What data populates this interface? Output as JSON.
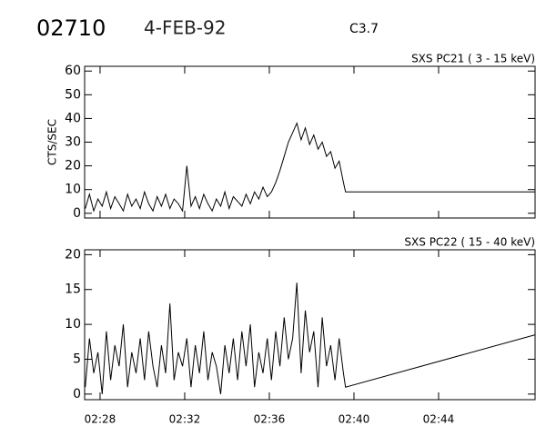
{
  "header": {
    "id": "02710",
    "date": "4-FEB-92",
    "class": "C3.7"
  },
  "chart_data": [
    {
      "type": "line",
      "title": "SXS PC21  ( 3 - 15 keV)",
      "y_label": "CTS/SEC",
      "color": "#000000",
      "xlim": [
        27.27,
        48.56
      ],
      "xticks": [
        28,
        32,
        36,
        40,
        44
      ],
      "ylim": [
        -2,
        62
      ],
      "yticks": [
        0,
        10,
        20,
        30,
        40,
        50,
        60
      ],
      "x": [
        27.3,
        27.5,
        27.7,
        27.9,
        28.1,
        28.3,
        28.5,
        28.7,
        28.9,
        29.1,
        29.3,
        29.5,
        29.7,
        29.9,
        30.1,
        30.3,
        30.5,
        30.7,
        30.9,
        31.1,
        31.3,
        31.5,
        31.7,
        31.9,
        32.1,
        32.3,
        32.5,
        32.7,
        32.9,
        33.1,
        33.3,
        33.5,
        33.7,
        33.9,
        34.1,
        34.3,
        34.5,
        34.7,
        34.9,
        35.1,
        35.3,
        35.5,
        35.7,
        35.9,
        36.1,
        36.3,
        36.5,
        36.7,
        36.9,
        37.1,
        37.3,
        37.5,
        37.7,
        37.9,
        38.1,
        38.3,
        38.5,
        38.7,
        38.9,
        39.1,
        39.3,
        39.5,
        39.6,
        48.56
      ],
      "values": [
        2,
        8,
        1,
        6,
        3,
        9,
        2,
        7,
        4,
        1,
        8,
        3,
        6,
        2,
        9,
        4,
        1,
        7,
        3,
        8,
        2,
        6,
        4,
        1,
        20,
        3,
        7,
        2,
        8,
        4,
        1,
        6,
        3,
        9,
        2,
        7,
        5,
        3,
        8,
        4,
        9,
        6,
        11,
        7,
        9,
        13,
        18,
        24,
        30,
        34,
        38,
        31,
        36,
        29,
        33,
        27,
        30,
        24,
        26,
        19,
        22,
        13,
        9,
        9
      ]
    },
    {
      "type": "line",
      "title": "SXS PC22  ( 15 - 40 keV)",
      "color": "#000000",
      "xlim": [
        27.27,
        48.56
      ],
      "xticks": [
        {
          "value": 28,
          "label": "02:28"
        },
        {
          "value": 32,
          "label": "02:32"
        },
        {
          "value": 36,
          "label": "02:36"
        },
        {
          "value": 40,
          "label": "02:40"
        },
        {
          "value": 44,
          "label": "02:44"
        }
      ],
      "ylim": [
        -0.8,
        20.7
      ],
      "yticks": [
        0,
        5,
        10,
        15,
        20
      ],
      "x": [
        27.3,
        27.5,
        27.7,
        27.9,
        28.1,
        28.3,
        28.5,
        28.7,
        28.9,
        29.1,
        29.3,
        29.5,
        29.7,
        29.9,
        30.1,
        30.3,
        30.5,
        30.7,
        30.9,
        31.1,
        31.3,
        31.5,
        31.7,
        31.9,
        32.1,
        32.3,
        32.5,
        32.7,
        32.9,
        33.1,
        33.3,
        33.5,
        33.7,
        33.9,
        34.1,
        34.3,
        34.5,
        34.7,
        34.9,
        35.1,
        35.3,
        35.5,
        35.7,
        35.9,
        36.1,
        36.3,
        36.5,
        36.7,
        36.9,
        37.1,
        37.3,
        37.5,
        37.7,
        37.9,
        38.1,
        38.3,
        38.5,
        38.7,
        38.9,
        39.1,
        39.3,
        39.5,
        39.6,
        48.56
      ],
      "values": [
        1,
        8,
        3,
        6,
        0,
        9,
        2,
        7,
        4,
        10,
        1,
        6,
        3,
        8,
        2,
        9,
        4,
        1,
        7,
        3,
        13,
        2,
        6,
        4,
        8,
        1,
        7,
        3,
        9,
        2,
        6,
        4,
        0,
        7,
        3,
        8,
        2,
        9,
        4,
        10,
        1,
        6,
        3,
        8,
        2,
        9,
        4,
        11,
        5,
        8,
        16,
        3,
        12,
        6,
        9,
        1,
        11,
        4,
        7,
        2,
        8,
        3,
        1,
        8.5
      ]
    }
  ]
}
